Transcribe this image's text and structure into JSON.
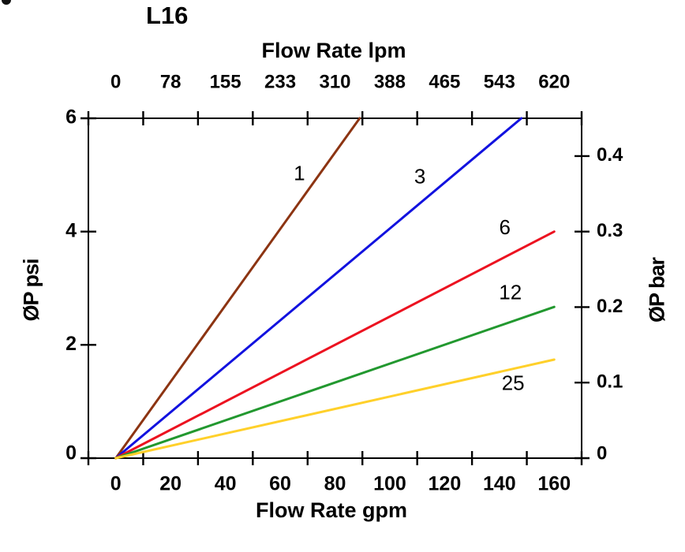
{
  "chart_data": {
    "type": "line",
    "title": "L16",
    "x_bottom": {
      "label": "Flow Rate gpm",
      "ticks": [
        "0",
        "20",
        "40",
        "60",
        "80",
        "100",
        "120",
        "140",
        "160"
      ],
      "range": [
        0,
        160
      ]
    },
    "x_top": {
      "label": "Flow Rate lpm",
      "ticks": [
        "0",
        "78",
        "155",
        "233",
        "310",
        "388",
        "465",
        "543",
        "620"
      ],
      "range": [
        0,
        620
      ]
    },
    "y_left": {
      "label": "ØP psi",
      "ticks": [
        "0",
        "2",
        "4",
        "6"
      ],
      "tick_values": [
        0,
        2,
        4,
        6
      ],
      "range": [
        0,
        6
      ]
    },
    "y_right": {
      "label": "ØP bar",
      "ticks": [
        "0",
        "0.1",
        "0.2",
        "0.3",
        "0.4"
      ],
      "tick_values": [
        0,
        0.1,
        0.2,
        0.3,
        0.4
      ],
      "range": [
        0,
        0.45
      ]
    },
    "series": [
      {
        "name": "1",
        "color": "#8C3412",
        "points": [
          [
            0,
            0
          ],
          [
            89,
            6.0
          ]
        ],
        "label_at": [
          67,
          5.0
        ]
      },
      {
        "name": "3",
        "color": "#1212DF",
        "points": [
          [
            0,
            0
          ],
          [
            148,
            6.0
          ]
        ],
        "label_at": [
          111,
          4.95
        ]
      },
      {
        "name": "6",
        "color": "#EC1220",
        "points": [
          [
            0,
            0
          ],
          [
            160,
            4.0
          ]
        ],
        "label_at": [
          142,
          4.05
        ]
      },
      {
        "name": "12",
        "color": "#22982F",
        "points": [
          [
            0,
            0
          ],
          [
            160,
            2.67
          ]
        ],
        "label_at": [
          144,
          2.9
        ]
      },
      {
        "name": "25",
        "color": "#FFD02A",
        "points": [
          [
            0,
            0
          ],
          [
            160,
            1.74
          ]
        ],
        "label_at": [
          145,
          1.3
        ]
      }
    ],
    "grid": "off",
    "legend": "inline-line-labels"
  }
}
